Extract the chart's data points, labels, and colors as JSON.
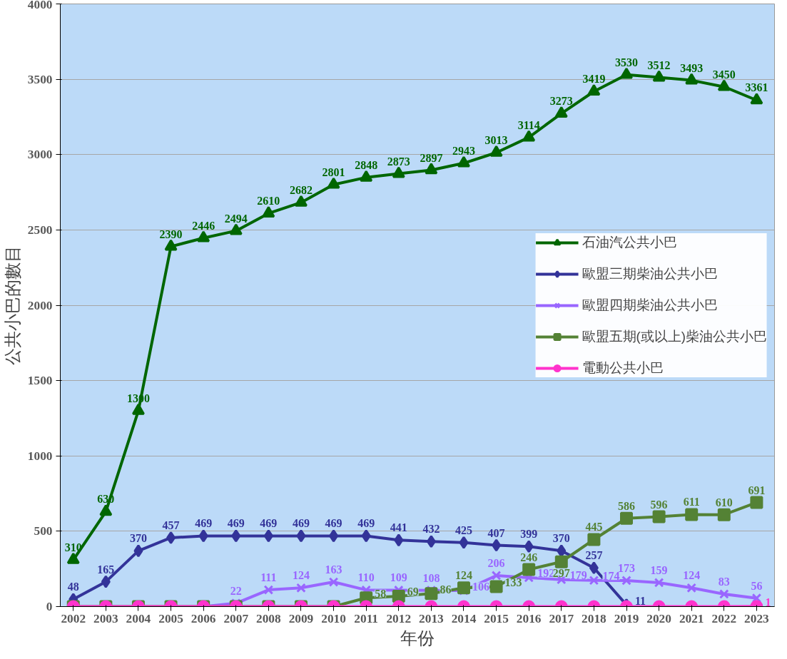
{
  "chart_data": {
    "type": "line",
    "xlabel": "年份",
    "ylabel": "公共小巴的數目",
    "categories": [
      "2002",
      "2003",
      "2004",
      "2005",
      "2006",
      "2007",
      "2008",
      "2009",
      "2010",
      "2011",
      "2012",
      "2013",
      "2014",
      "2015",
      "2016",
      "2017",
      "2018",
      "2019",
      "2020",
      "2021",
      "2022",
      "2023"
    ],
    "ylim": [
      0,
      4000
    ],
    "yticks": [
      0,
      500,
      1000,
      1500,
      2000,
      2500,
      3000,
      3500,
      4000
    ],
    "grid": "y",
    "legend": "right",
    "series": [
      {
        "name": "石油汽公共小巴",
        "color": "#006600",
        "marker": "triangle",
        "values": [
          310,
          630,
          1300,
          2390,
          2446,
          2494,
          2610,
          2682,
          2801,
          2848,
          2873,
          2897,
          2943,
          3013,
          3114,
          3273,
          3419,
          3530,
          3512,
          3493,
          3450,
          3361
        ],
        "value_labels": [
          "310",
          "630",
          "1300",
          "2390",
          "2446",
          "2494",
          "2610",
          "2682",
          "2801",
          "2848",
          "2873",
          "2897",
          "2943",
          "3013",
          "3114",
          "3273",
          "3419",
          "3530",
          "3512",
          "3493",
          "3450",
          "3361"
        ]
      },
      {
        "name": "歐盟三期柴油公共小巴",
        "color": "#333399",
        "marker": "diamond",
        "values": [
          48,
          165,
          370,
          457,
          469,
          469,
          469,
          469,
          469,
          469,
          441,
          432,
          425,
          407,
          399,
          370,
          257,
          11,
          null,
          null,
          null,
          null
        ],
        "value_labels": [
          "48",
          "165",
          "370",
          "457",
          "469",
          "469",
          "469",
          "469",
          "469",
          "469",
          "441",
          "432",
          "425",
          "407",
          "399",
          "370",
          "257",
          "11",
          null,
          null,
          null,
          null
        ]
      },
      {
        "name": "歐盟四期柴油公共小巴",
        "color": "#9966ff",
        "marker": "cross",
        "values": [
          null,
          null,
          null,
          null,
          0,
          22,
          111,
          124,
          163,
          110,
          109,
          108,
          106,
          206,
          192,
          179,
          174,
          173,
          159,
          124,
          83,
          56
        ],
        "value_labels": [
          null,
          null,
          null,
          null,
          null,
          "22",
          "111",
          "124",
          "163",
          "110",
          "109",
          "108",
          "106",
          "206",
          "192",
          "179",
          "174",
          "173",
          "159",
          "124",
          "83",
          "56"
        ]
      },
      {
        "name": "歐盟五期(或以上)柴油公共小巴",
        "color": "#548235",
        "marker": "square",
        "values": [
          0,
          0,
          0,
          0,
          0,
          0,
          0,
          0,
          0,
          58,
          69,
          86,
          124,
          133,
          246,
          297,
          445,
          586,
          596,
          611,
          610,
          691
        ],
        "value_labels": [
          null,
          null,
          null,
          null,
          null,
          null,
          null,
          null,
          null,
          "58",
          "69",
          "86",
          "124",
          "133",
          "246",
          "297",
          "445",
          "586",
          "596",
          "611",
          "610",
          "691"
        ]
      },
      {
        "name": "電動公共小巴",
        "color": "#ff33cc",
        "marker": "circle",
        "values": [
          0,
          0,
          0,
          0,
          0,
          0,
          0,
          0,
          0,
          0,
          0,
          0,
          0,
          0,
          0,
          0,
          0,
          0,
          0,
          0,
          0,
          1
        ],
        "value_labels": [
          null,
          null,
          null,
          null,
          null,
          null,
          null,
          null,
          null,
          null,
          null,
          null,
          null,
          null,
          null,
          null,
          null,
          null,
          null,
          null,
          null,
          "1"
        ]
      }
    ]
  }
}
